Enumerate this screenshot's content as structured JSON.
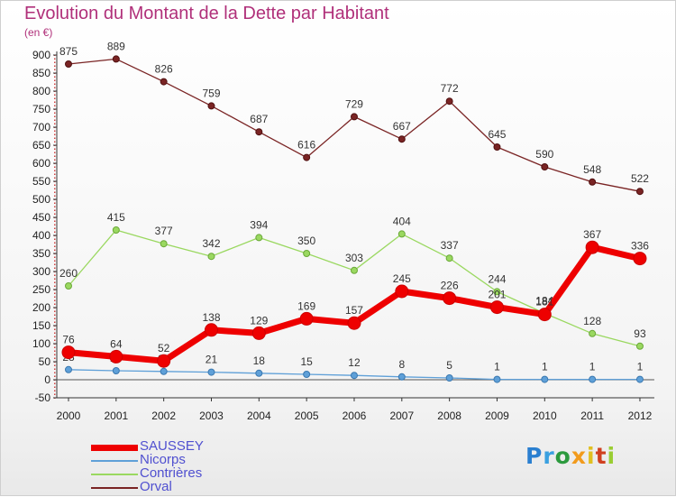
{
  "title": "Evolution du Montant de la Dette par Habitant",
  "subtitle": "(en €)",
  "brand": {
    "text": "Proxiti",
    "letters": [
      {
        "ch": "P",
        "color": "#2a7fd0"
      },
      {
        "ch": "r",
        "color": "#3aa0e0"
      },
      {
        "ch": "o",
        "color": "#2c9a3e"
      },
      {
        "ch": "x",
        "color": "#f29b1d"
      },
      {
        "ch": "i",
        "color": "#e0c020"
      },
      {
        "ch": "t",
        "color": "#d04020"
      },
      {
        "ch": "i",
        "color": "#9acd32"
      }
    ]
  },
  "chart_data": {
    "type": "line",
    "title": "Evolution du Montant de la Dette par Habitant",
    "ylabel": "(en €)",
    "xlabel": "",
    "x": [
      2000,
      2001,
      2002,
      2003,
      2004,
      2005,
      2006,
      2007,
      2008,
      2009,
      2010,
      2011,
      2012
    ],
    "ylim": [
      -50,
      900
    ],
    "yticks": [
      -50,
      0,
      50,
      100,
      150,
      200,
      250,
      300,
      350,
      400,
      450,
      500,
      550,
      600,
      650,
      700,
      750,
      800,
      850,
      900
    ],
    "grid": false,
    "legend_position": "bottom-left",
    "series": [
      {
        "name": "SAUSSEY",
        "color": "#ee0000",
        "values": [
          76,
          64,
          52,
          138,
          129,
          169,
          157,
          245,
          226,
          201,
          181,
          367,
          336
        ]
      },
      {
        "name": "Nicorps",
        "color": "#5fa0d8",
        "values": [
          28,
          25,
          23,
          21,
          18,
          15,
          12,
          8,
          5,
          1,
          1,
          1,
          1
        ]
      },
      {
        "name": "Contrières",
        "color": "#9ad860",
        "values": [
          260,
          415,
          377,
          342,
          394,
          350,
          303,
          404,
          337,
          244,
          184,
          128,
          93
        ]
      },
      {
        "name": "Orval",
        "color": "#7a2424",
        "values": [
          875,
          889,
          826,
          759,
          687,
          616,
          729,
          667,
          772,
          645,
          590,
          548,
          522
        ]
      }
    ]
  }
}
